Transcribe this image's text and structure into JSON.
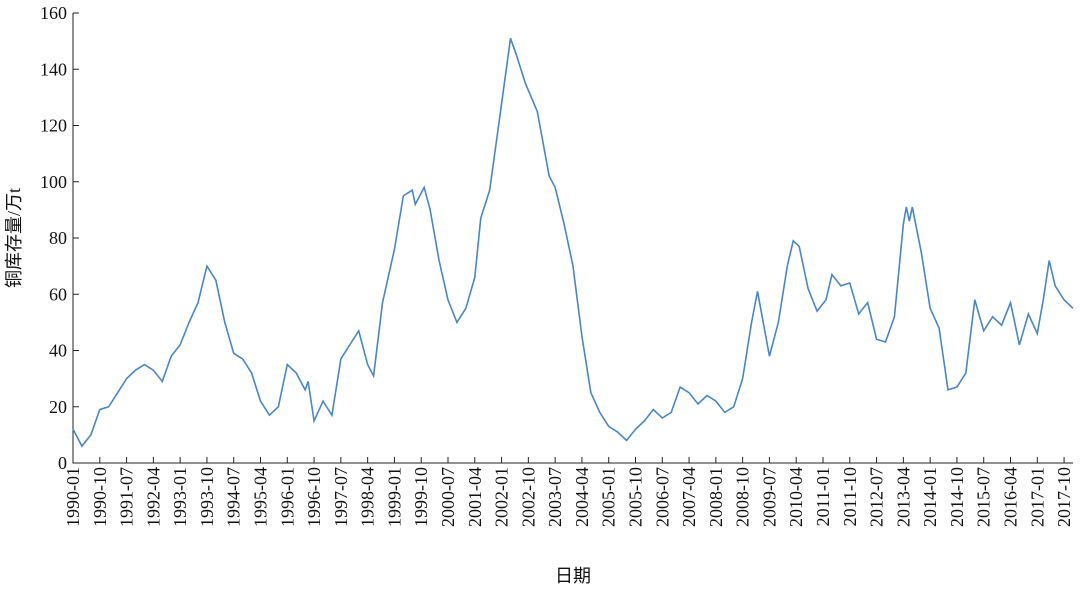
{
  "chart_data": {
    "type": "line",
    "x_label": "日期",
    "y_label": "铜库存量/万t",
    "x": [
      "1990-01",
      "1990-04",
      "1990-07",
      "1990-10",
      "1991-01",
      "1991-04",
      "1991-07",
      "1991-10",
      "1992-01",
      "1992-04",
      "1992-07",
      "1992-10",
      "1993-01",
      "1993-04",
      "1993-07",
      "1993-10",
      "1994-01",
      "1994-04",
      "1994-07",
      "1994-10",
      "1995-01",
      "1995-04",
      "1995-07",
      "1995-10",
      "1996-01",
      "1996-04",
      "1996-07",
      "1996-08",
      "1996-10",
      "1997-01",
      "1997-04",
      "1997-07",
      "1997-10",
      "1998-01",
      "1998-04",
      "1998-06",
      "1998-09",
      "1999-01",
      "1999-04",
      "1999-07",
      "1999-08",
      "1999-11",
      "2000-01",
      "2000-04",
      "2000-07",
      "2000-10",
      "2001-01",
      "2001-04",
      "2001-06",
      "2001-09",
      "2001-12",
      "2002-04",
      "2002-06",
      "2002-09",
      "2003-01",
      "2003-05",
      "2003-07",
      "2003-10",
      "2004-01",
      "2004-04",
      "2004-07",
      "2004-10",
      "2005-01",
      "2005-04",
      "2005-07",
      "2005-10",
      "2006-01",
      "2006-04",
      "2006-07",
      "2006-10",
      "2007-01",
      "2007-04",
      "2007-07",
      "2007-10",
      "2008-01",
      "2008-04",
      "2008-07",
      "2008-10",
      "2009-01",
      "2009-03",
      "2009-07",
      "2009-10",
      "2010-01",
      "2010-03",
      "2010-05",
      "2010-08",
      "2010-11",
      "2011-02",
      "2011-04",
      "2011-07",
      "2011-10",
      "2012-01",
      "2012-04",
      "2012-07",
      "2012-10",
      "2013-01",
      "2013-04",
      "2013-05",
      "2013-06",
      "2013-07",
      "2013-10",
      "2014-01",
      "2014-04",
      "2014-07",
      "2014-10",
      "2015-01",
      "2015-04",
      "2015-07",
      "2015-10",
      "2016-01",
      "2016-04",
      "2016-07",
      "2016-10",
      "2017-01",
      "2017-03",
      "2017-05",
      "2017-07",
      "2017-10",
      "2018-01"
    ],
    "series": [
      {
        "name": "铜库存量",
        "color": "#4a86c0",
        "values": [
          12,
          6,
          10,
          19,
          20,
          25,
          30,
          33,
          35,
          33,
          29,
          38,
          42,
          50,
          57,
          70,
          65,
          50,
          39,
          37,
          32,
          22,
          17,
          20,
          35,
          32,
          26,
          29,
          15,
          22,
          17,
          37,
          42,
          47,
          35,
          31,
          57,
          76,
          95,
          97,
          92,
          98,
          90,
          72,
          58,
          50,
          55,
          66,
          87,
          97,
          120,
          151,
          145,
          135,
          125,
          102,
          98,
          85,
          70,
          45,
          25,
          18,
          13,
          11,
          8,
          12,
          15,
          19,
          16,
          18,
          27,
          25,
          21,
          24,
          22,
          18,
          20,
          30,
          50,
          61,
          38,
          50,
          70,
          79,
          77,
          62,
          54,
          58,
          67,
          63,
          64,
          53,
          57,
          44,
          43,
          52,
          85,
          91,
          86,
          91,
          75,
          55,
          48,
          26,
          27,
          32,
          58,
          47,
          52,
          49,
          57,
          42,
          53,
          46,
          58,
          72,
          63,
          58,
          55
        ]
      }
    ],
    "xlim": [
      "1990-01",
      "2018-01"
    ],
    "xticks": [
      "1990-01",
      "1990-10",
      "1991-07",
      "1992-04",
      "1993-01",
      "1993-10",
      "1994-07",
      "1995-04",
      "1996-01",
      "1996-10",
      "1997-07",
      "1998-04",
      "1999-01",
      "1999-10",
      "2000-07",
      "2001-04",
      "2002-01",
      "2002-10",
      "2003-07",
      "2004-04",
      "2005-01",
      "2005-10",
      "2006-07",
      "2007-04",
      "2008-01",
      "2008-10",
      "2009-07",
      "2010-04",
      "2011-01",
      "2011-10",
      "2012-07",
      "2013-04",
      "2014-01",
      "2014-10",
      "2015-07",
      "2016-04",
      "2017-01",
      "2017-10"
    ],
    "ylim": [
      0,
      160
    ],
    "yticks": [
      0,
      20,
      40,
      60,
      80,
      100,
      120,
      140,
      160
    ]
  }
}
